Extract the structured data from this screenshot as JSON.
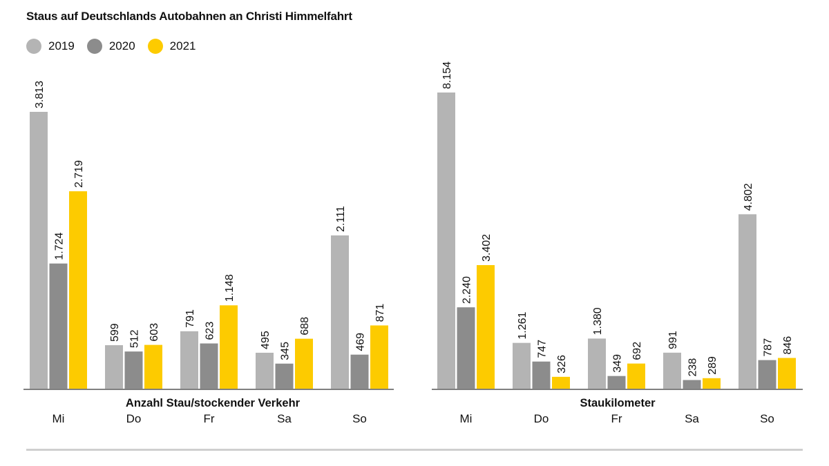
{
  "title": "Staus auf Deutschlands Autobahnen an Christi Himmelfahrt",
  "colors": {
    "2019": "#b4b4b4",
    "2020": "#8c8c8c",
    "2021": "#fdcb00",
    "axis": "#555555"
  },
  "legend": [
    {
      "label": "2019",
      "color": "#b4b4b4"
    },
    {
      "label": "2020",
      "color": "#8c8c8c"
    },
    {
      "label": "2021",
      "color": "#fdcb00"
    }
  ],
  "chart_data": [
    {
      "type": "bar",
      "title": "Anzahl Stau/stockender Verkehr",
      "categories": [
        "Mi",
        "Do",
        "Fr",
        "Sa",
        "So"
      ],
      "series": [
        {
          "name": "2019",
          "values": [
            3813,
            599,
            791,
            495,
            2111
          ],
          "labels": [
            "3.813",
            "599",
            "791",
            "495",
            "2.111"
          ]
        },
        {
          "name": "2020",
          "values": [
            1724,
            512,
            623,
            345,
            469
          ],
          "labels": [
            "1.724",
            "512",
            "623",
            "345",
            "469"
          ]
        },
        {
          "name": "2021",
          "values": [
            2719,
            603,
            1148,
            688,
            871
          ],
          "labels": [
            "2.719",
            "603",
            "1.148",
            "688",
            "871"
          ]
        }
      ],
      "ylim": [
        0,
        3813
      ]
    },
    {
      "type": "bar",
      "title": "Staukilometer",
      "categories": [
        "Mi",
        "Do",
        "Fr",
        "Sa",
        "So"
      ],
      "series": [
        {
          "name": "2019",
          "values": [
            8154,
            1261,
            1380,
            991,
            4802
          ],
          "labels": [
            "8.154",
            "1.261",
            "1.380",
            "991",
            "4.802"
          ]
        },
        {
          "name": "2020",
          "values": [
            2240,
            747,
            349,
            238,
            787
          ],
          "labels": [
            "2.240",
            "747",
            "349",
            "238",
            "787"
          ]
        },
        {
          "name": "2021",
          "values": [
            3402,
            326,
            692,
            289,
            846
          ],
          "labels": [
            "3.402",
            "326",
            "692",
            "289",
            "846"
          ]
        }
      ],
      "ylim": [
        0,
        8154
      ]
    }
  ]
}
